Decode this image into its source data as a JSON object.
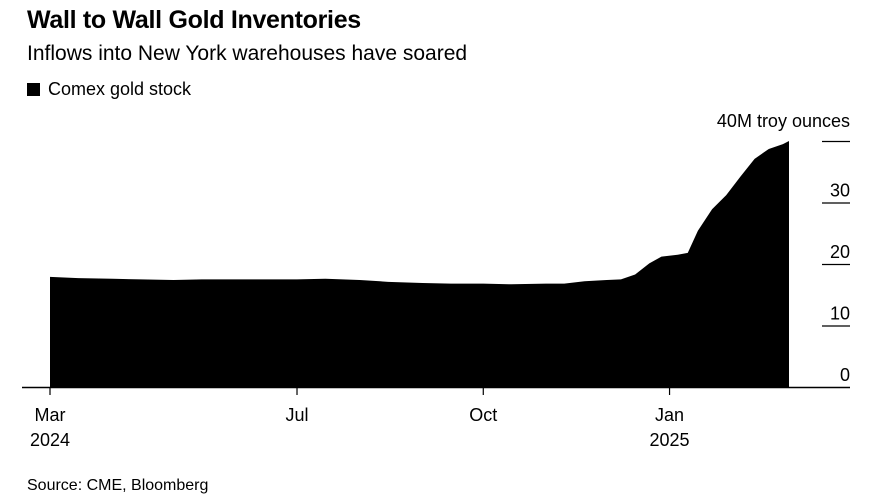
{
  "title": "Wall to Wall Gold Inventories",
  "subtitle": "Inflows into New York warehouses have soared",
  "source": "Source: CME, Bloomberg",
  "colors": {
    "series": "#000000",
    "axis": "#000000",
    "background": "#ffffff"
  },
  "chart_data": {
    "type": "area",
    "unit_label": "40M troy ounces",
    "legend": [
      "Comex gold stock"
    ],
    "legend_position": "top-left",
    "grid": false,
    "y_axis_side": "right",
    "ylim": [
      0,
      40
    ],
    "y_ticks": [
      {
        "value": 0,
        "label": "0"
      },
      {
        "value": 10,
        "label": "10"
      },
      {
        "value": 20,
        "label": "20"
      },
      {
        "value": 30,
        "label": "30"
      },
      {
        "value": 40,
        "label": ""
      }
    ],
    "xlim": [
      "2024-03-01",
      "2025-03-01"
    ],
    "x_ticks": [
      {
        "date": "2024-03-01",
        "label": "Mar",
        "sublabel": "2024"
      },
      {
        "date": "2024-07-01",
        "label": "Jul",
        "sublabel": ""
      },
      {
        "date": "2024-10-01",
        "label": "Oct",
        "sublabel": ""
      },
      {
        "date": "2025-01-01",
        "label": "Jan",
        "sublabel": "2025"
      }
    ],
    "series": [
      {
        "name": "Comex gold stock",
        "points": [
          [
            "2024-03-01",
            17.9
          ],
          [
            "2024-03-15",
            17.7
          ],
          [
            "2024-04-01",
            17.6
          ],
          [
            "2024-04-15",
            17.5
          ],
          [
            "2024-05-01",
            17.4
          ],
          [
            "2024-05-15",
            17.5
          ],
          [
            "2024-06-01",
            17.5
          ],
          [
            "2024-06-15",
            17.5
          ],
          [
            "2024-07-01",
            17.5
          ],
          [
            "2024-07-15",
            17.6
          ],
          [
            "2024-08-01",
            17.4
          ],
          [
            "2024-08-15",
            17.1
          ],
          [
            "2024-09-01",
            16.9
          ],
          [
            "2024-09-15",
            16.8
          ],
          [
            "2024-10-01",
            16.8
          ],
          [
            "2024-10-15",
            16.7
          ],
          [
            "2024-11-01",
            16.8
          ],
          [
            "2024-11-10",
            16.8
          ],
          [
            "2024-11-20",
            17.2
          ],
          [
            "2024-12-01",
            17.4
          ],
          [
            "2024-12-08",
            17.5
          ],
          [
            "2024-12-15",
            18.3
          ],
          [
            "2024-12-22",
            20.1
          ],
          [
            "2024-12-28",
            21.2
          ],
          [
            "2025-01-05",
            21.5
          ],
          [
            "2025-01-10",
            21.8
          ],
          [
            "2025-01-15",
            25.4
          ],
          [
            "2025-01-22",
            28.9
          ],
          [
            "2025-01-29",
            31.2
          ],
          [
            "2025-02-05",
            34.2
          ],
          [
            "2025-02-12",
            37.1
          ],
          [
            "2025-02-19",
            38.7
          ],
          [
            "2025-02-26",
            39.5
          ],
          [
            "2025-03-01",
            40.0
          ]
        ]
      }
    ]
  }
}
